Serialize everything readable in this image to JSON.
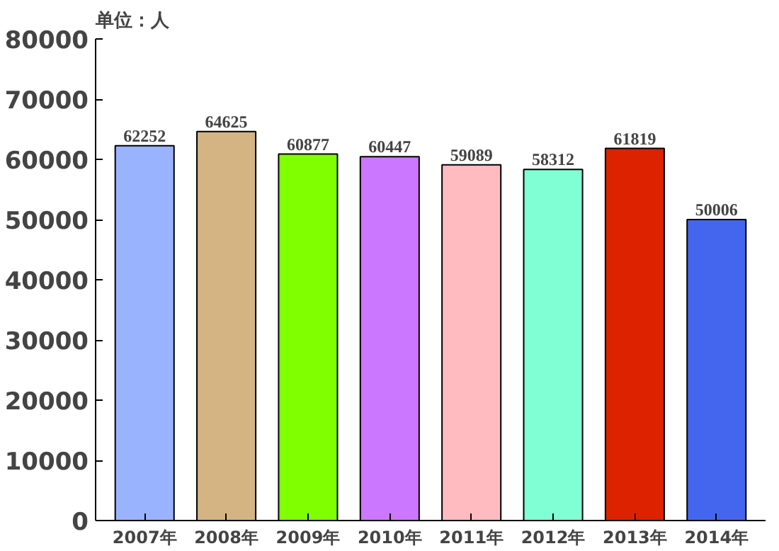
{
  "chart_data": {
    "type": "bar",
    "ylabel": "单位：人",
    "categories": [
      "2007年",
      "2008年",
      "2009年",
      "2010年",
      "2011年",
      "2012年",
      "2013年",
      "2014年"
    ],
    "values": [
      62252,
      64625,
      60877,
      60447,
      59089,
      58312,
      61819,
      50006
    ],
    "colors": [
      "#99b3ff",
      "#d4b483",
      "#80ff00",
      "#cc77ff",
      "#ffbbc0",
      "#80ffd4",
      "#dd2200",
      "#4466ee"
    ],
    "ylim": [
      0,
      80000
    ],
    "yticks": [
      0,
      10000,
      20000,
      30000,
      40000,
      50000,
      60000,
      70000,
      80000
    ],
    "data_labels": true,
    "grid": false
  }
}
